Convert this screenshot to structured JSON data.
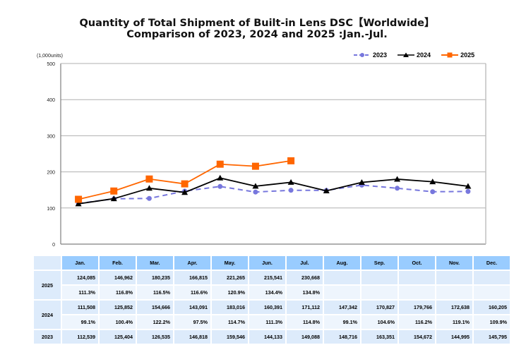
{
  "chart_data": {
    "type": "line",
    "title": "Quantity of Total Shipment of Built-in Lens DSC【Worldwide】",
    "subtitle": "Comparison of 2023, 2024 and 2025 :Jan.-Jul.",
    "ylabel": "(1,000units)",
    "xlabel": "",
    "ylim": [
      0,
      500
    ],
    "yticks": [
      0,
      100,
      200,
      300,
      400,
      500
    ],
    "grid": true,
    "legend_position": "top-right",
    "categories": [
      "Jan.",
      "Feb.",
      "Mar.",
      "Apr.",
      "May.",
      "Jun.",
      "Jul.",
      "Aug.",
      "Sep.",
      "Oct.",
      "Nov.",
      "Dec."
    ],
    "series": [
      {
        "name": "2023",
        "color": "#7777dd",
        "marker": "circle",
        "dash": true,
        "values": [
          112.539,
          125.404,
          126.535,
          146.818,
          159.546,
          144.133,
          149.088,
          148.716,
          163.351,
          154.672,
          144.995,
          145.795
        ]
      },
      {
        "name": "2024",
        "color": "#000000",
        "marker": "triangle",
        "dash": false,
        "values": [
          111.508,
          125.852,
          154.666,
          143.091,
          183.016,
          160.391,
          171.112,
          147.342,
          170.827,
          179.766,
          172.638,
          160.205
        ]
      },
      {
        "name": "2025",
        "color": "#ff6600",
        "marker": "square",
        "dash": false,
        "values": [
          124.085,
          146.962,
          180.235,
          166.815,
          221.265,
          215.541,
          230.668
        ]
      }
    ]
  },
  "table": {
    "months": [
      "Jan.",
      "Feb.",
      "Mar.",
      "Apr.",
      "May.",
      "Jun.",
      "Jul.",
      "Aug.",
      "Sep.",
      "Oct.",
      "Nov.",
      "Dec."
    ],
    "rows": [
      {
        "year": "2025",
        "units": [
          "124,085",
          "146,962",
          "180,235",
          "166,815",
          "221,265",
          "215,541",
          "230,668",
          "",
          "",
          "",
          "",
          ""
        ],
        "ratio": [
          "111.3%",
          "116.8%",
          "116.5%",
          "116.6%",
          "120.9%",
          "134.4%",
          "134.8%",
          "",
          "",
          "",
          "",
          ""
        ]
      },
      {
        "year": "2024",
        "units": [
          "111,508",
          "125,852",
          "154,666",
          "143,091",
          "183,016",
          "160,391",
          "171,112",
          "147,342",
          "170,827",
          "179,766",
          "172,638",
          "160,205"
        ],
        "ratio": [
          "99.1%",
          "100.4%",
          "122.2%",
          "97.5%",
          "114.7%",
          "111.3%",
          "114.8%",
          "99.1%",
          "104.6%",
          "116.2%",
          "119.1%",
          "109.9%"
        ]
      },
      {
        "year": "2023",
        "units": [
          "112,539",
          "125,404",
          "126,535",
          "146,818",
          "159,546",
          "144,133",
          "149,088",
          "148,716",
          "163,351",
          "154,672",
          "144,995",
          "145,795"
        ]
      }
    ]
  }
}
